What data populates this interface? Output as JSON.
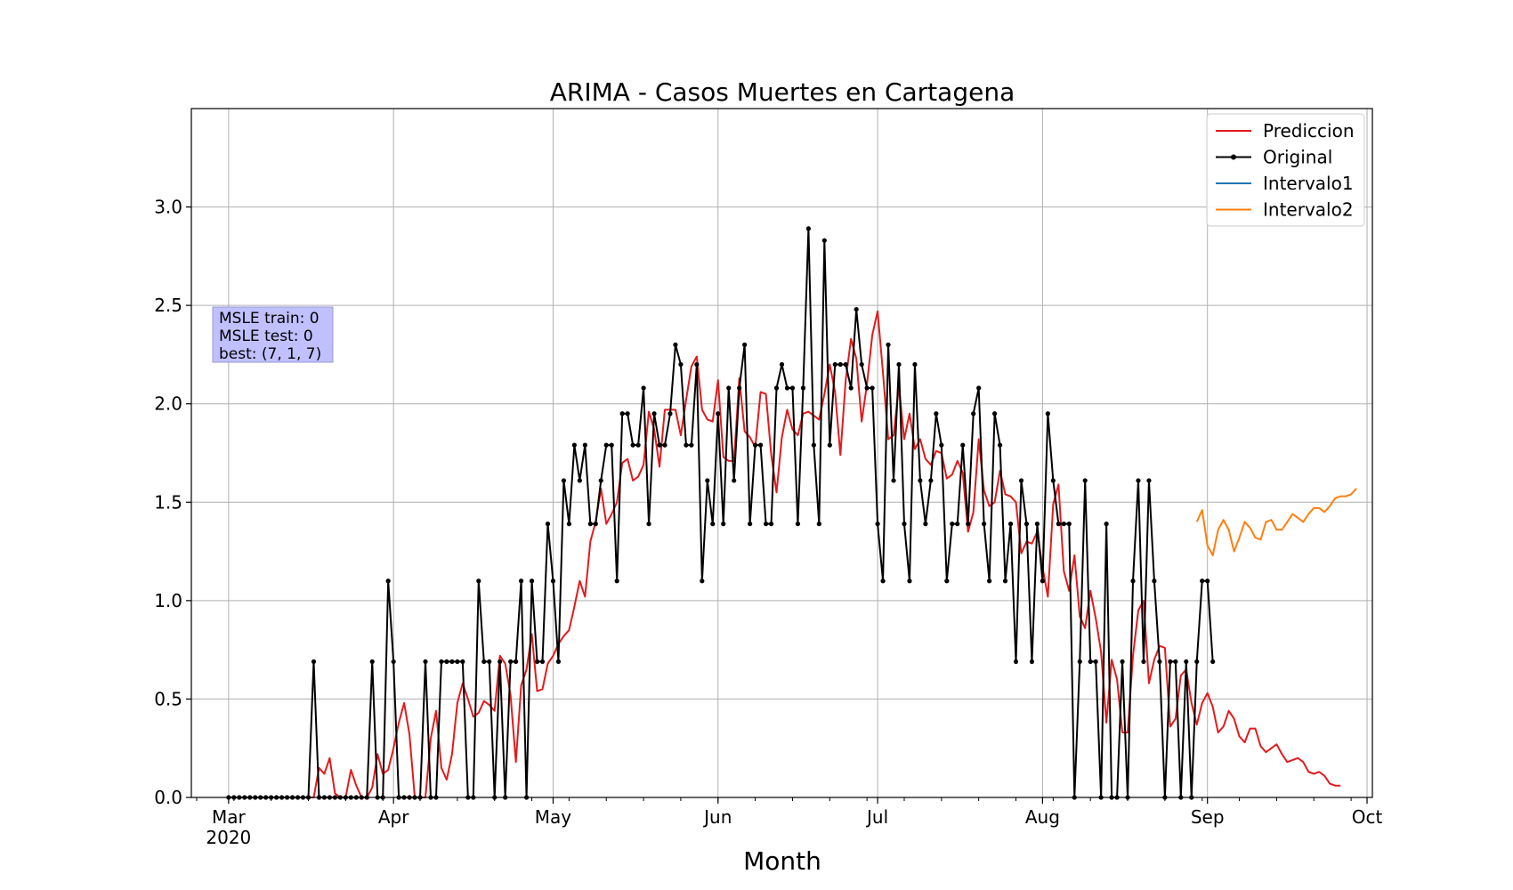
{
  "chart_data": {
    "type": "line",
    "title": "ARIMA - Casos Muertes en Cartagena",
    "xlabel": "Month",
    "ylabel": "",
    "x_axis": {
      "type": "date",
      "range": [
        "2020-02-23",
        "2020-10-02"
      ],
      "ticks": [
        {
          "date": "2020-03-01",
          "label": "Mar",
          "sublabel": "2020"
        },
        {
          "date": "2020-04-01",
          "label": "Apr"
        },
        {
          "date": "2020-05-01",
          "label": "May"
        },
        {
          "date": "2020-06-01",
          "label": "Jun"
        },
        {
          "date": "2020-07-01",
          "label": "Jul"
        },
        {
          "date": "2020-08-01",
          "label": "Aug"
        },
        {
          "date": "2020-09-01",
          "label": "Sep"
        },
        {
          "date": "2020-10-01",
          "label": "Oct"
        }
      ]
    },
    "y_axis": {
      "range": [
        0,
        3.5
      ],
      "ticks": [
        0.0,
        0.5,
        1.0,
        1.5,
        2.0,
        2.5,
        3.0
      ],
      "tick_labels": [
        "0.0",
        "0.5",
        "1.0",
        "1.5",
        "2.0",
        "2.5",
        "3.0"
      ]
    },
    "grid": true,
    "legend": {
      "placement": "top-right",
      "entries": [
        "Prediccion",
        "Original",
        "Intervalo1",
        "Intervalo2"
      ]
    },
    "annotation": {
      "lines": [
        "MSLE train: 0",
        "MSLE test: 0",
        "best: (7, 1, 7)"
      ],
      "background": "#c0c0ff"
    },
    "colors": {
      "prediccion": "#e41a1c",
      "original": "#000000",
      "intervalo1": "#1f77b4",
      "intervalo2": "#ff7f0e"
    },
    "series": [
      {
        "name": "Original",
        "start_date": "2020-03-01",
        "values": [
          0,
          0,
          0,
          0,
          0,
          0,
          0,
          0,
          0,
          0,
          0,
          0,
          0,
          0,
          0,
          0,
          0.69,
          0,
          0,
          0,
          0,
          0,
          0,
          0,
          0,
          0,
          0,
          0.69,
          0,
          0,
          1.1,
          0.69,
          0,
          0,
          0,
          0,
          0,
          0.69,
          0,
          0,
          0.69,
          0.69,
          0.69,
          0.69,
          0.69,
          0,
          0,
          1.1,
          0.69,
          0.69,
          0,
          0.69,
          0,
          0.69,
          0.69,
          1.1,
          0,
          1.1,
          0.69,
          0.69,
          1.39,
          1.1,
          0.69,
          1.61,
          1.39,
          1.79,
          1.61,
          1.79,
          1.39,
          1.39,
          1.61,
          1.79,
          1.79,
          1.1,
          1.95,
          1.95,
          1.79,
          1.79,
          2.08,
          1.39,
          1.95,
          1.79,
          1.79,
          1.95,
          2.3,
          2.2,
          1.79,
          1.79,
          2.2,
          1.1,
          1.61,
          1.39,
          1.95,
          1.39,
          2.08,
          1.61,
          2.08,
          2.3,
          1.39,
          1.79,
          1.79,
          1.39,
          1.39,
          2.08,
          2.2,
          2.08,
          2.08,
          1.39,
          2.08,
          2.89,
          1.79,
          1.39,
          2.83,
          1.79,
          2.2,
          2.2,
          2.2,
          2.08,
          2.48,
          2.2,
          2.08,
          2.08,
          1.39,
          1.1,
          2.3,
          1.61,
          2.2,
          1.39,
          1.1,
          2.2,
          1.61,
          1.39,
          1.61,
          1.95,
          1.79,
          1.1,
          1.39,
          1.39,
          1.79,
          1.39,
          1.95,
          2.08,
          1.39,
          1.1,
          1.95,
          1.79,
          1.1,
          1.39,
          0.69,
          1.61,
          1.39,
          0.69,
          1.39,
          1.1,
          1.95,
          1.61,
          1.39,
          1.39,
          1.39,
          0,
          0.69,
          1.61,
          0.69,
          0.69,
          0,
          1.39,
          0,
          0,
          0.69,
          0,
          1.1,
          1.61,
          0.69,
          1.61,
          1.1,
          0.69,
          0,
          0.69,
          0.69,
          0,
          0.69,
          0,
          0.69,
          1.1,
          1.1,
          0.69
        ]
      },
      {
        "name": "Prediccion",
        "start_date": "2020-03-01",
        "values": [
          0,
          0,
          0,
          0,
          0,
          0,
          0,
          0,
          0,
          0,
          0,
          0,
          0,
          0,
          0,
          0,
          0,
          0.15,
          0.12,
          0.2,
          0.02,
          0,
          0,
          0.14,
          0.06,
          0,
          0,
          0.05,
          0.22,
          0.12,
          0.14,
          0.25,
          0.38,
          0.48,
          0.32,
          0,
          0,
          0,
          0.3,
          0.44,
          0.15,
          0.09,
          0.22,
          0.48,
          0.58,
          0.5,
          0.41,
          0.43,
          0.49,
          0.47,
          0.44,
          0.72,
          0.68,
          0.52,
          0.18,
          0.57,
          0.65,
          0.83,
          0.54,
          0.55,
          0.68,
          0.72,
          0.78,
          0.82,
          0.85,
          0.97,
          1.1,
          1.02,
          1.3,
          1.4,
          1.57,
          1.39,
          1.44,
          1.5,
          1.7,
          1.72,
          1.61,
          1.63,
          1.69,
          1.96,
          1.87,
          1.68,
          1.97,
          1.97,
          1.97,
          1.84,
          2.02,
          2.19,
          2.24,
          1.97,
          1.92,
          1.91,
          2.12,
          1.73,
          1.71,
          1.71,
          2.13,
          1.86,
          1.83,
          1.78,
          2.06,
          2.05,
          1.74,
          1.55,
          1.83,
          1.97,
          1.87,
          1.84,
          1.95,
          1.96,
          1.94,
          1.92,
          2.05,
          2.2,
          2.06,
          1.74,
          2.12,
          2.33,
          2.23,
          1.91,
          2.1,
          2.35,
          2.47,
          2.16,
          1.82,
          1.84,
          2.09,
          1.82,
          1.95,
          1.77,
          1.82,
          1.72,
          1.69,
          1.76,
          1.75,
          1.62,
          1.64,
          1.71,
          1.65,
          1.35,
          1.45,
          1.82,
          1.56,
          1.48,
          1.5,
          1.66,
          1.54,
          1.53,
          1.5,
          1.24,
          1.3,
          1.29,
          1.35,
          1.17,
          1.02,
          1.49,
          1.59,
          1.15,
          1.05,
          1.23,
          0.92,
          0.86,
          1.05,
          0.91,
          0.74,
          0.38,
          0.7,
          0.6,
          0.33,
          0.33,
          0.72,
          0.95,
          1.0,
          0.58,
          0.7,
          0.77,
          0.76,
          0.36,
          0.4,
          0.62,
          0.65,
          0.48,
          0.37,
          0.48,
          0.53,
          0.46,
          0.33,
          0.36,
          0.44,
          0.4,
          0.31,
          0.28,
          0.35,
          0.35,
          0.26,
          0.23,
          0.25,
          0.27,
          0.22,
          0.18,
          0.19,
          0.2,
          0.18,
          0.13,
          0.12,
          0.13,
          0.11,
          0.07,
          0.06,
          0.06
        ]
      },
      {
        "name": "Intervalo2",
        "start_date": "2020-08-30",
        "values": [
          1.4,
          1.46,
          1.28,
          1.23,
          1.36,
          1.41,
          1.36,
          1.25,
          1.32,
          1.4,
          1.37,
          1.32,
          1.31,
          1.4,
          1.41,
          1.36,
          1.36,
          1.4,
          1.44,
          1.42,
          1.4,
          1.44,
          1.47,
          1.47,
          1.45,
          1.48,
          1.52,
          1.53,
          1.53,
          1.54,
          1.57
        ]
      }
    ]
  }
}
